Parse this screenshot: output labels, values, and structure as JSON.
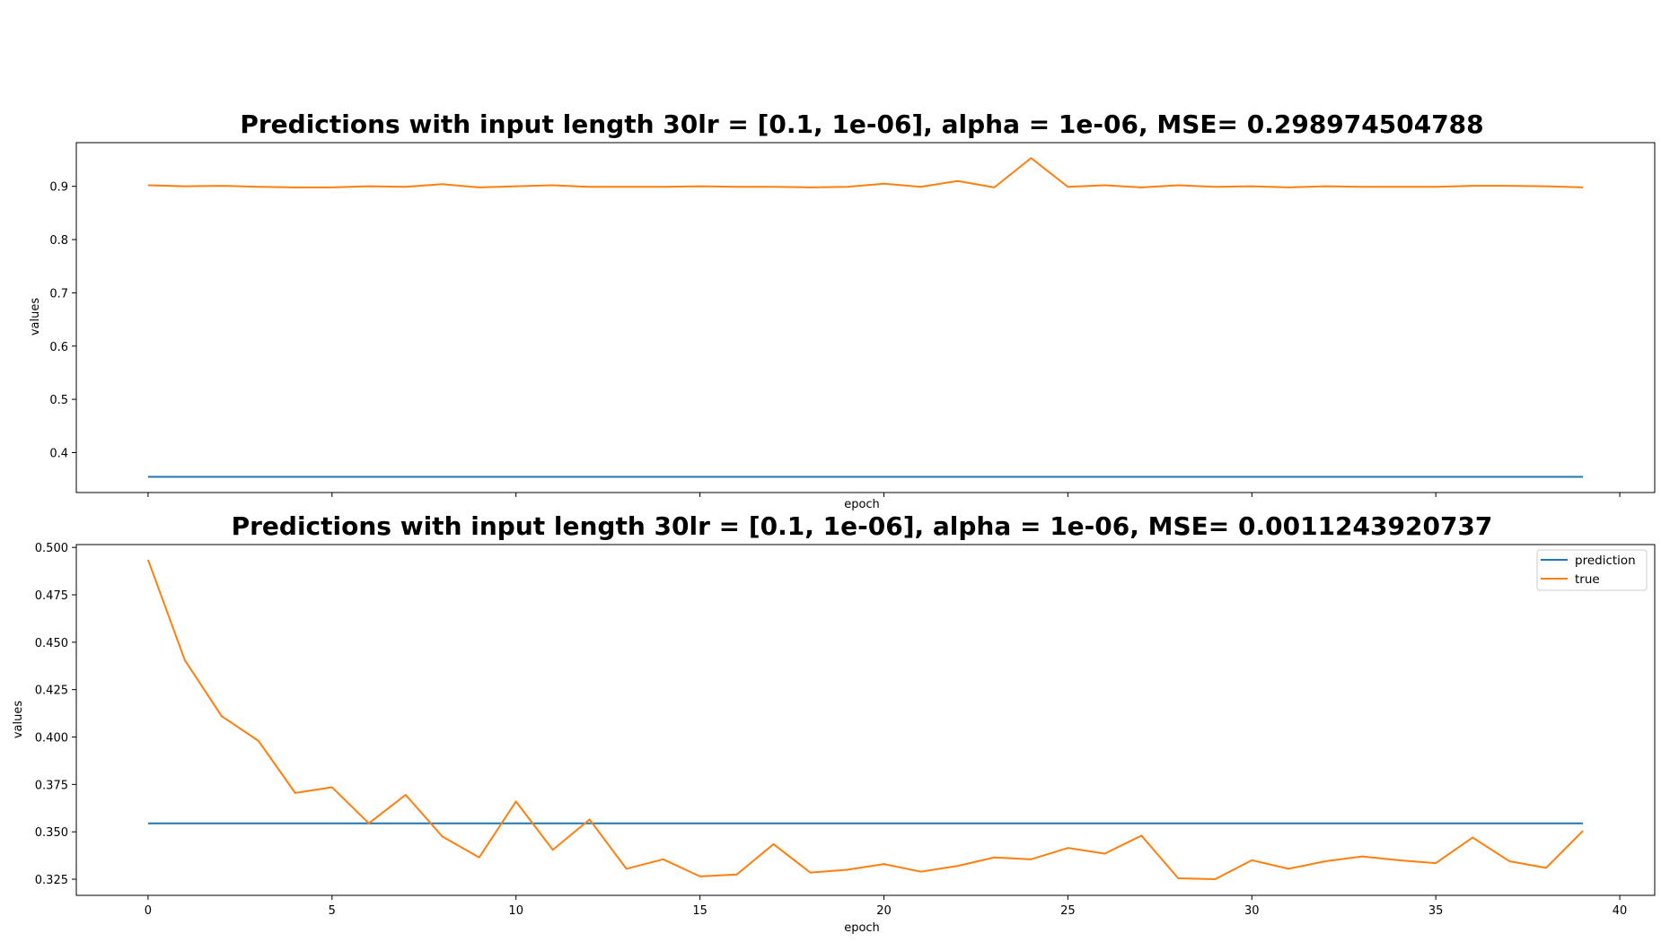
{
  "chart_data": [
    {
      "type": "line",
      "title": "Predictions with input length 30lr = [0.1, 1e-06], alpha = 1e-06, MSE= 0.298974504788",
      "xlabel": "epoch",
      "ylabel": "values",
      "xlim": [
        -1.95,
        40.95
      ],
      "ylim": [
        0.325,
        0.982
      ],
      "xticks": [
        0,
        5,
        10,
        15,
        20,
        25,
        30,
        35,
        40
      ],
      "xtick_labels_visible": false,
      "yticks": [
        0.4,
        0.5,
        0.6,
        0.7,
        0.8,
        0.9
      ],
      "ytick_labels": [
        "0.4",
        "0.5",
        "0.6",
        "0.7",
        "0.8",
        "0.9"
      ],
      "grid": false,
      "legend": null,
      "series": [
        {
          "name": "prediction",
          "color": "#1f77b4",
          "x": [
            0,
            39
          ],
          "values": [
            0.3545,
            0.3545
          ]
        },
        {
          "name": "true",
          "color": "#ff7f0e",
          "x": [
            0,
            1,
            2,
            3,
            4,
            5,
            6,
            7,
            8,
            9,
            10,
            11,
            12,
            13,
            14,
            15,
            16,
            17,
            18,
            19,
            20,
            21,
            22,
            23,
            24,
            25,
            26,
            27,
            28,
            29,
            30,
            31,
            32,
            33,
            34,
            35,
            36,
            37,
            38,
            39
          ],
          "values": [
            0.902,
            0.9,
            0.901,
            0.899,
            0.898,
            0.898,
            0.9,
            0.899,
            0.904,
            0.898,
            0.9,
            0.902,
            0.899,
            0.899,
            0.899,
            0.9,
            0.899,
            0.899,
            0.898,
            0.899,
            0.905,
            0.899,
            0.91,
            0.898,
            0.953,
            0.899,
            0.902,
            0.898,
            0.902,
            0.899,
            0.9,
            0.898,
            0.9,
            0.899,
            0.899,
            0.899,
            0.901,
            0.901,
            0.9,
            0.898
          ]
        }
      ]
    },
    {
      "type": "line",
      "title": "Predictions with input length 30lr = [0.1, 1e-06], alpha = 1e-06, MSE= 0.0011243920737",
      "xlabel": "epoch",
      "ylabel": "values",
      "xlim": [
        -1.95,
        40.95
      ],
      "ylim": [
        0.3165,
        0.5015
      ],
      "xticks": [
        0,
        5,
        10,
        15,
        20,
        25,
        30,
        35,
        40
      ],
      "xtick_labels": [
        "0",
        "5",
        "10",
        "15",
        "20",
        "25",
        "30",
        "35",
        "40"
      ],
      "yticks": [
        0.325,
        0.35,
        0.375,
        0.4,
        0.425,
        0.45,
        0.475,
        0.5
      ],
      "ytick_labels": [
        "0.325",
        "0.350",
        "0.375",
        "0.400",
        "0.425",
        "0.450",
        "0.475",
        "0.500"
      ],
      "grid": false,
      "legend": "top-right",
      "legend_entries": [
        "prediction",
        "true"
      ],
      "series": [
        {
          "name": "prediction",
          "color": "#1f77b4",
          "x": [
            0,
            39
          ],
          "values": [
            0.3545,
            0.3545
          ]
        },
        {
          "name": "true",
          "color": "#ff7f0e",
          "x": [
            0,
            1,
            2,
            3,
            4,
            5,
            6,
            7,
            8,
            9,
            10,
            11,
            12,
            13,
            14,
            15,
            16,
            17,
            18,
            19,
            20,
            21,
            22,
            23,
            24,
            25,
            26,
            27,
            28,
            29,
            30,
            31,
            32,
            33,
            34,
            35,
            36,
            37,
            38,
            39
          ],
          "values": [
            0.4935,
            0.4405,
            0.411,
            0.398,
            0.3705,
            0.3735,
            0.3545,
            0.3695,
            0.3475,
            0.3365,
            0.366,
            0.3405,
            0.3565,
            0.3305,
            0.3355,
            0.3265,
            0.3275,
            0.3435,
            0.3285,
            0.33,
            0.333,
            0.329,
            0.332,
            0.3365,
            0.3355,
            0.3415,
            0.3385,
            0.348,
            0.3255,
            0.325,
            0.335,
            0.3305,
            0.3345,
            0.337,
            0.335,
            0.3335,
            0.347,
            0.3345,
            0.331,
            0.3505
          ]
        }
      ]
    }
  ]
}
